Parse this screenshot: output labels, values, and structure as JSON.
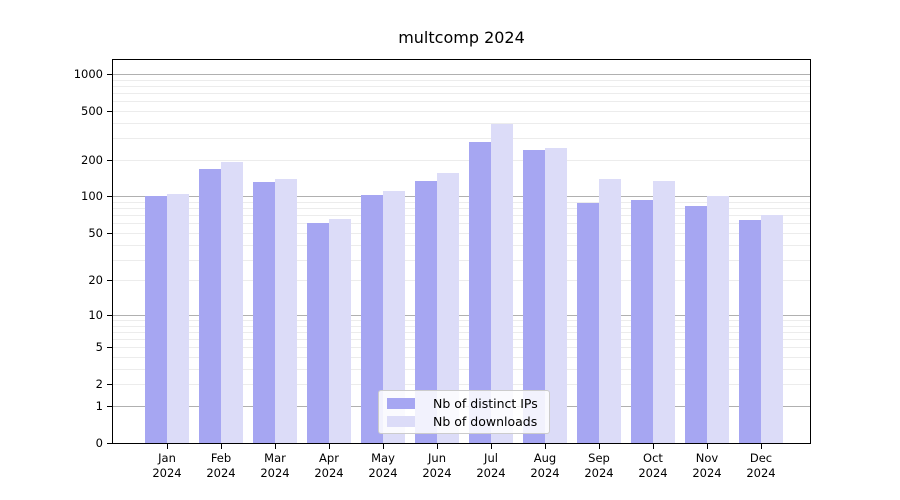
{
  "title": "multcomp 2024",
  "colors": {
    "ips_bar": "#a6a6f2",
    "downloads_bar": "#dcdcf8",
    "grid_major": "#b0b0b0",
    "grid_minor": "#ececec",
    "spine": "#000000",
    "legend_border": "#cccccc"
  },
  "chart_data": {
    "type": "bar",
    "title": "multcomp 2024",
    "categories": [
      "Jan",
      "Feb",
      "Mar",
      "Apr",
      "May",
      "Jun",
      "Jul",
      "Aug",
      "Sep",
      "Oct",
      "Nov",
      "Dec"
    ],
    "year": "2024",
    "series": [
      {
        "name": "Nb of distinct IPs",
        "values": [
          100,
          168,
          131,
          60,
          102,
          133,
          278,
          238,
          88,
          93,
          84,
          64
        ]
      },
      {
        "name": "Nb of downloads",
        "values": [
          104,
          190,
          138,
          65,
          110,
          155,
          392,
          250,
          140,
          134,
          100,
          70
        ]
      }
    ],
    "yscale": "log1p",
    "yticks": [
      0,
      1,
      2,
      5,
      10,
      20,
      50,
      100,
      200,
      500,
      1000
    ],
    "ylim": [
      0,
      1300
    ],
    "grid": true,
    "legend_position": "bottom-center"
  }
}
